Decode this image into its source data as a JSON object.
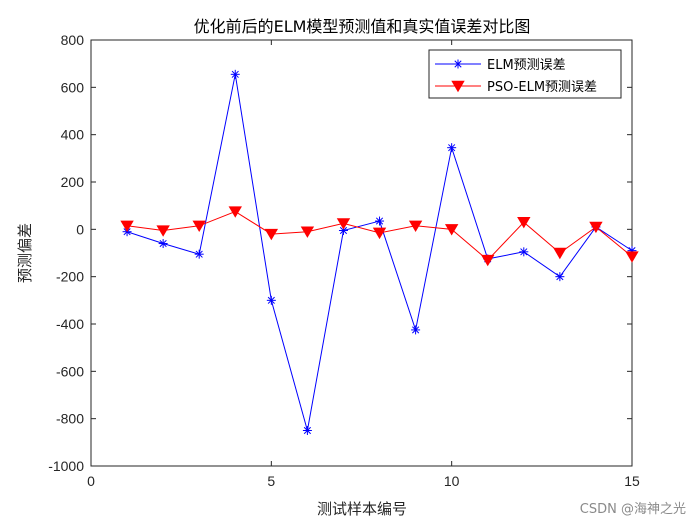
{
  "chart_data": {
    "type": "line",
    "title": "优化前后的ELM模型预测值和真实值误差对比图",
    "xlabel": "测试样本编号",
    "ylabel": "预测偏差",
    "xlim": [
      0,
      15
    ],
    "ylim": [
      -1000,
      800
    ],
    "xticks": [
      0,
      5,
      10,
      15
    ],
    "yticks": [
      800,
      600,
      400,
      200,
      0,
      -200,
      -400,
      -600,
      -800,
      -1000
    ],
    "grid": false,
    "legend_position": "top-right",
    "x": [
      1,
      2,
      3,
      4,
      5,
      6,
      7,
      8,
      9,
      10,
      11,
      12,
      13,
      14,
      15
    ],
    "series": [
      {
        "name": "ELM预测误差",
        "color": "#0000ff",
        "marker": "asterisk",
        "values": [
          -10,
          -60,
          -105,
          655,
          -300,
          -850,
          -5,
          35,
          -425,
          345,
          -125,
          -95,
          -200,
          10,
          -90
        ]
      },
      {
        "name": "PSO-ELM预测误差",
        "color": "#ff0000",
        "marker": "triangle-down",
        "values": [
          15,
          -5,
          15,
          75,
          -20,
          -10,
          25,
          -15,
          15,
          0,
          -130,
          30,
          -100,
          10,
          -115
        ]
      }
    ]
  },
  "watermark": "CSDN @海神之光"
}
